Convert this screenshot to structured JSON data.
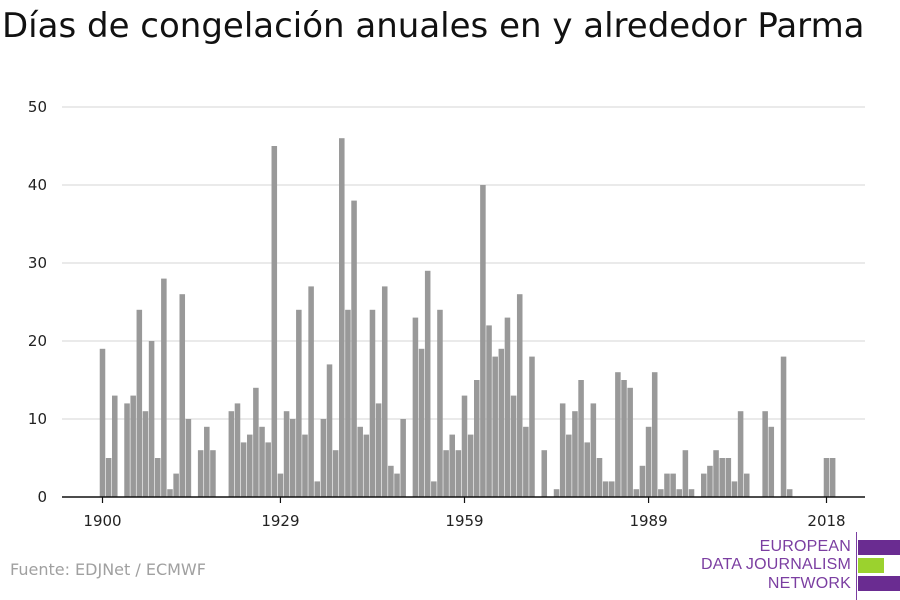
{
  "title": "Días de congelación anuales en y alrededor Parma",
  "source": "Fuente: EDJNet / ECMWF",
  "logo": {
    "lines": [
      "EUROPEAN",
      "DATA JOURNALISM",
      "NETWORK"
    ],
    "bar_colors": [
      "#6a2c91",
      "#9bd22e",
      "#6a2c91"
    ]
  },
  "colors": {
    "bar": "#999999",
    "grid": "#dddddd",
    "axis": "#111111",
    "text": "#222222"
  },
  "chart_data": {
    "type": "bar",
    "title": "Días de congelación anuales en y alrededor Parma",
    "xlabel": "",
    "ylabel": "",
    "ylim": [
      0,
      50
    ],
    "yticks": [
      0,
      10,
      20,
      30,
      40,
      50
    ],
    "xticks": [
      1900,
      1929,
      1959,
      1989,
      2018
    ],
    "xlim": [
      1900,
      2018
    ],
    "grid": true,
    "x": [
      1900,
      1901,
      1902,
      1903,
      1904,
      1905,
      1906,
      1907,
      1908,
      1909,
      1910,
      1911,
      1912,
      1913,
      1914,
      1915,
      1916,
      1917,
      1918,
      1919,
      1920,
      1921,
      1922,
      1923,
      1924,
      1925,
      1926,
      1927,
      1928,
      1929,
      1930,
      1931,
      1932,
      1933,
      1934,
      1935,
      1936,
      1937,
      1938,
      1939,
      1940,
      1941,
      1942,
      1943,
      1944,
      1945,
      1946,
      1947,
      1948,
      1949,
      1950,
      1951,
      1952,
      1953,
      1954,
      1955,
      1956,
      1957,
      1958,
      1959,
      1960,
      1961,
      1962,
      1963,
      1964,
      1965,
      1966,
      1967,
      1968,
      1969,
      1970,
      1971,
      1972,
      1973,
      1974,
      1975,
      1976,
      1977,
      1978,
      1979,
      1980,
      1981,
      1982,
      1983,
      1984,
      1985,
      1986,
      1987,
      1988,
      1989,
      1990,
      1991,
      1992,
      1993,
      1994,
      1995,
      1996,
      1997,
      1998,
      1999,
      2000,
      2001,
      2002,
      2003,
      2004,
      2005,
      2006,
      2007,
      2008,
      2009,
      2010,
      2011,
      2012,
      2013,
      2014,
      2015,
      2016,
      2017,
      2018,
      2019
    ],
    "values": [
      19,
      5,
      13,
      0,
      12,
      13,
      24,
      11,
      20,
      5,
      28,
      1,
      3,
      26,
      10,
      0,
      6,
      9,
      6,
      0,
      0,
      11,
      12,
      7,
      8,
      14,
      9,
      7,
      45,
      3,
      11,
      10,
      24,
      8,
      27,
      2,
      10,
      17,
      6,
      46,
      24,
      38,
      9,
      8,
      24,
      12,
      27,
      4,
      3,
      10,
      0,
      23,
      19,
      29,
      2,
      24,
      6,
      8,
      6,
      13,
      8,
      15,
      40,
      22,
      18,
      19,
      23,
      13,
      26,
      9,
      18,
      0,
      6,
      0,
      1,
      12,
      8,
      11,
      15,
      7,
      12,
      5,
      2,
      2,
      16,
      15,
      14,
      1,
      4,
      9,
      16,
      1,
      3,
      3,
      1,
      6,
      1,
      0,
      3,
      4,
      6,
      5,
      5,
      2,
      11,
      3,
      0,
      0,
      11,
      9,
      0,
      18,
      1,
      0,
      0,
      0,
      0,
      0,
      5,
      5
    ]
  }
}
